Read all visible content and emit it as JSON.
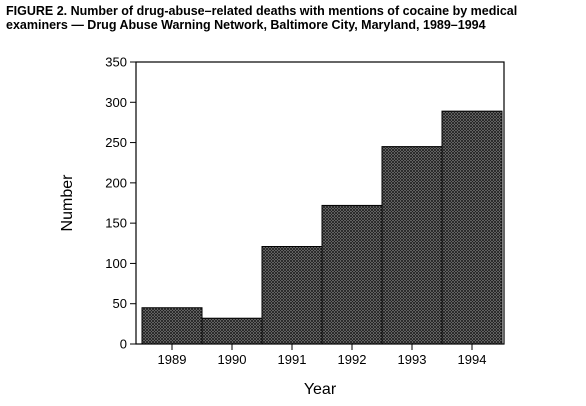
{
  "chart_data": {
    "type": "bar",
    "title_line1": "FIGURE 2. Number of drug-abuse–related deaths with mentions of cocaine by medical",
    "title_line2": "examiners — Drug Abuse Warning Network, Baltimore City, Maryland, 1989–1994",
    "xlabel": "Year",
    "ylabel": "Number",
    "categories": [
      "1989",
      "1990",
      "1991",
      "1992",
      "1993",
      "1994"
    ],
    "values": [
      45,
      32,
      121,
      172,
      245,
      289
    ],
    "ylim": [
      0,
      350
    ],
    "yticks": [
      0,
      50,
      100,
      150,
      200,
      250,
      300,
      350
    ],
    "grid": false,
    "legend": "none",
    "bar_fill": "#4a4a4a",
    "bar_pattern": "crosshatch",
    "bar_gap": 0
  }
}
